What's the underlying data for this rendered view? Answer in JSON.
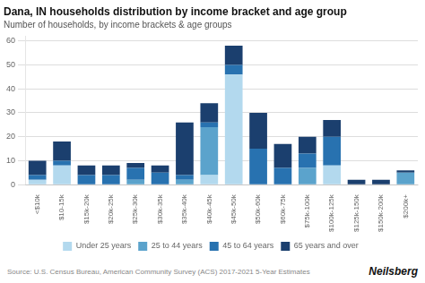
{
  "chart_data": {
    "type": "bar",
    "stacked": true,
    "title": "Dana, IN households distribution by income bracket and age group",
    "subtitle": "Number of households, by income brackets & age groups",
    "annotations": [
      "Source: U.S. Census Bureau, American Community Survey (ACS) 2017-2021 5-Year Estimates",
      "Neilsberg"
    ],
    "categories": [
      "<$10k",
      "$10-15k",
      "$15k-20k",
      "$20k-25k",
      "$25k-30k",
      "$30k-35k",
      "$35k-40k",
      "$40k-45k",
      "$45k-50k",
      "$50k-60k",
      "$60k-75k",
      "$75k-100k",
      "$100k-125k",
      "$125k-150k",
      "$150k-200k",
      "$200k+"
    ],
    "series": [
      {
        "name": "Under 25 years",
        "color": "#b3d9ee",
        "values": [
          2,
          8,
          0,
          0,
          0,
          0,
          0,
          4,
          46,
          0,
          0,
          0,
          8,
          0,
          0,
          0
        ]
      },
      {
        "name": "25 to 44 years",
        "color": "#5ba3cc",
        "values": [
          0,
          0,
          0,
          0,
          2,
          0,
          2,
          20,
          0,
          0,
          0,
          7,
          0,
          0,
          0,
          5
        ]
      },
      {
        "name": "45 to 64 years",
        "color": "#2872b0",
        "values": [
          2,
          2,
          4,
          4,
          5,
          5,
          2,
          2,
          4,
          15,
          7,
          6,
          12,
          0,
          0,
          0
        ]
      },
      {
        "name": "65 years and over",
        "color": "#1b3f6e",
        "values": [
          6,
          8,
          4,
          4,
          2,
          3,
          22,
          8,
          8,
          15,
          10,
          7,
          7,
          2,
          2,
          1
        ]
      }
    ],
    "ylim": [
      0,
      62
    ],
    "yticks": [
      0,
      10,
      20,
      30,
      40,
      50,
      60
    ],
    "grid": true,
    "legend": "bottom"
  }
}
